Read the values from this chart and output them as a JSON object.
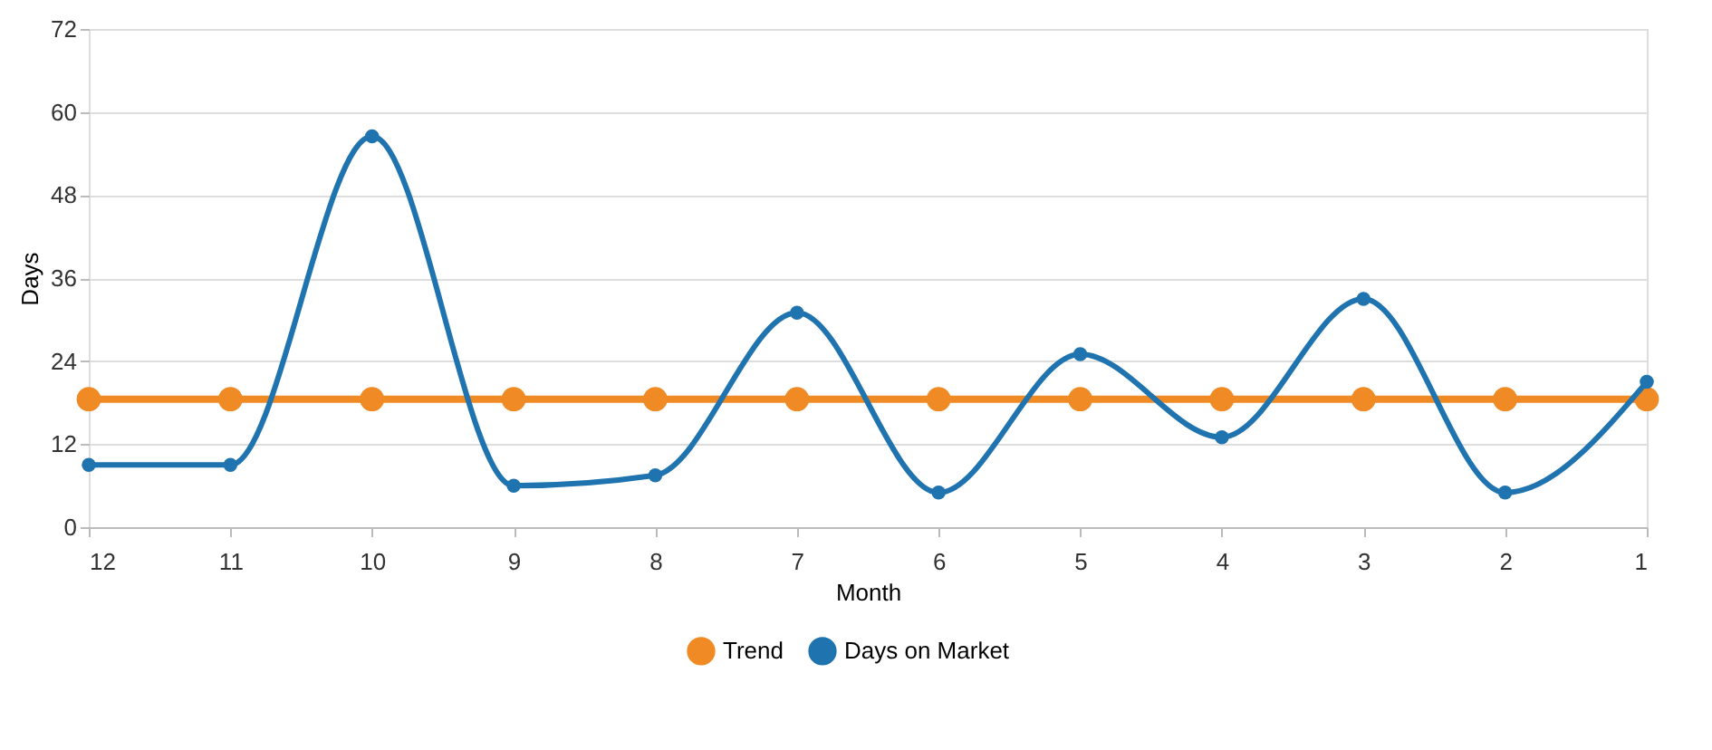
{
  "chart_data": {
    "type": "line",
    "xlabel": "Month",
    "ylabel": "Days",
    "categories": [
      "12",
      "11",
      "10",
      "9",
      "8",
      "7",
      "6",
      "5",
      "4",
      "3",
      "2",
      "1"
    ],
    "series": [
      {
        "name": "Trend",
        "color": "#f08a24",
        "values": [
          18.5,
          18.5,
          18.5,
          18.5,
          18.5,
          18.5,
          18.5,
          18.5,
          18.5,
          18.5,
          18.5,
          18.5
        ]
      },
      {
        "name": "Days on Market",
        "color": "#1f74b0",
        "values": [
          9,
          9,
          56.5,
          6,
          7.5,
          31,
          5,
          25,
          13,
          33,
          5,
          21
        ]
      }
    ],
    "ylim": [
      0,
      72
    ],
    "yticks": [
      0,
      12,
      24,
      36,
      48,
      60,
      72
    ],
    "grid": "y",
    "legend": "bottom",
    "marker": "circle",
    "line_style": "solid"
  }
}
